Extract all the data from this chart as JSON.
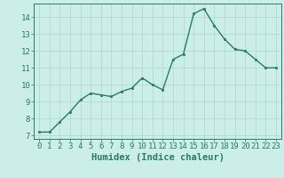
{
  "x": [
    0,
    1,
    2,
    3,
    4,
    5,
    6,
    7,
    8,
    9,
    10,
    11,
    12,
    13,
    14,
    15,
    16,
    17,
    18,
    19,
    20,
    21,
    22,
    23
  ],
  "y": [
    7.2,
    7.2,
    7.8,
    8.4,
    9.1,
    9.5,
    9.4,
    9.3,
    9.6,
    9.8,
    10.4,
    10.0,
    9.7,
    11.5,
    11.8,
    14.2,
    14.5,
    13.5,
    12.7,
    12.1,
    12.0,
    11.5,
    11.0,
    11.0
  ],
  "line_color": "#2a7a6a",
  "marker": "s",
  "markersize": 2.0,
  "linewidth": 1.0,
  "xlabel": "Humidex (Indice chaleur)",
  "xlim": [
    -0.5,
    23.5
  ],
  "ylim": [
    6.8,
    14.8
  ],
  "yticks": [
    7,
    8,
    9,
    10,
    11,
    12,
    13,
    14
  ],
  "xticks": [
    0,
    1,
    2,
    3,
    4,
    5,
    6,
    7,
    8,
    9,
    10,
    11,
    12,
    13,
    14,
    15,
    16,
    17,
    18,
    19,
    20,
    21,
    22,
    23
  ],
  "bg_color": "#cceee8",
  "grid_color": "#aad8d0",
  "tick_color": "#2a7a6a",
  "label_color": "#2a7a6a",
  "xlabel_fontsize": 7.5,
  "tick_fontsize": 6.5
}
